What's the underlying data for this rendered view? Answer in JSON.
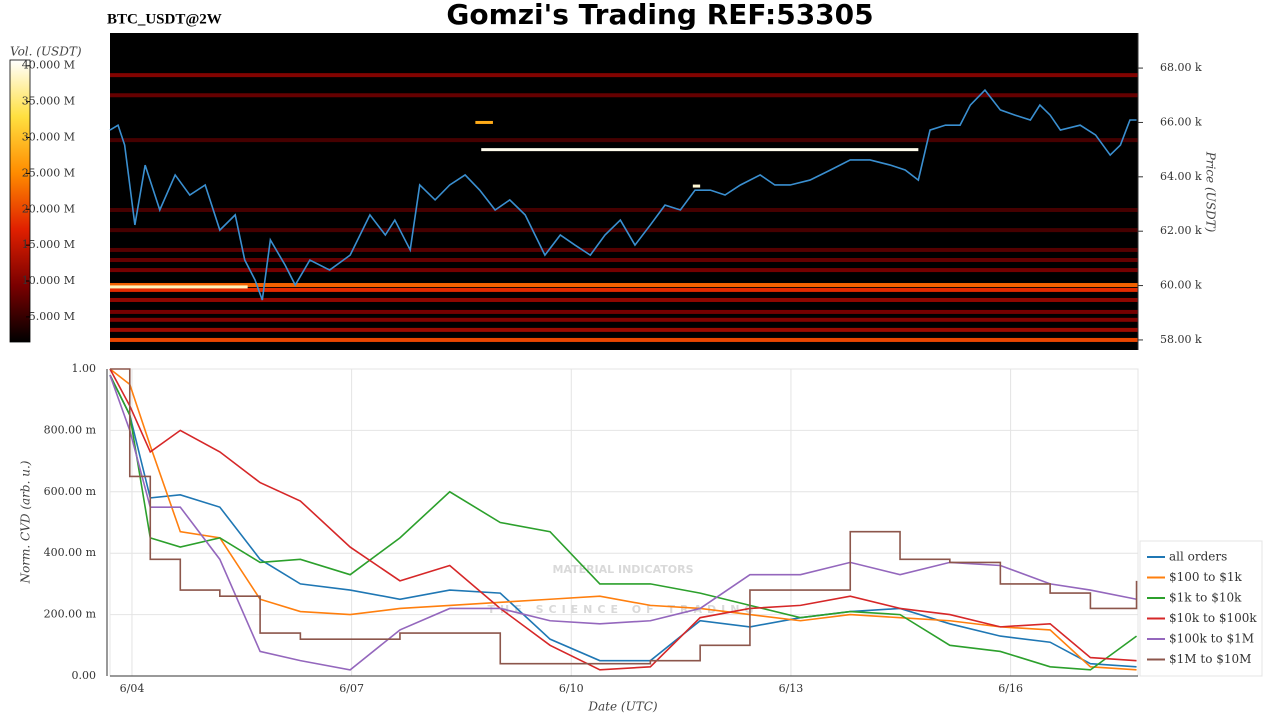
{
  "chart_data": [
    {
      "type": "heatmap",
      "title": "Gomzi's Trading REF:53305",
      "subtitle": "BTC_USDT@2W",
      "ylabel": "Price (USDT)",
      "xlim": [
        3.7,
        17.74
      ],
      "ylim": [
        57630,
        69290
      ],
      "yticks": [
        {
          "value": 58000,
          "label": "58.00 k"
        },
        {
          "value": 60000,
          "label": "60.00 k"
        },
        {
          "value": 62000,
          "label": "62.00 k"
        },
        {
          "value": 64000,
          "label": "64.00 k"
        },
        {
          "value": 66000,
          "label": "66.00 k"
        },
        {
          "value": 68000,
          "label": "68.00 k"
        }
      ],
      "colormap": [
        "#000000",
        "#7a0000",
        "#e02000",
        "#ff8c00",
        "#ffe040",
        "#ffffff"
      ],
      "colorbar": {
        "label": "Vol. (USDT)",
        "clim": [
          1500000,
          40800000
        ],
        "ticks": [
          {
            "value": 5000000,
            "label": "5.000 M"
          },
          {
            "value": 10000000,
            "label": "10.000 M"
          },
          {
            "value": 15000000,
            "label": "15.000 M"
          },
          {
            "value": 20000000,
            "label": "20.000 M"
          },
          {
            "value": 25000000,
            "label": "25.000 M"
          },
          {
            "value": 30000000,
            "label": "30.000 M"
          },
          {
            "value": 35000000,
            "label": "35.000 M"
          },
          {
            "value": 40000000,
            "label": "40.000 M"
          }
        ]
      },
      "heatmap": {
        "rows": [
          {
            "price": 58000,
            "volume": 20000000
          },
          {
            "price": 58370,
            "volume": 12000000
          },
          {
            "price": 58740,
            "volume": 10000000
          },
          {
            "price": 59030,
            "volume": 9000000
          },
          {
            "price": 59470,
            "volume": 11000000
          },
          {
            "price": 59840,
            "volume": 18000000
          },
          {
            "price": 60020,
            "volume": 22000000
          },
          {
            "price": 60570,
            "volume": 9000000
          },
          {
            "price": 60940,
            "volume": 8000000
          },
          {
            "price": 61310,
            "volume": 7000000
          },
          {
            "price": 62040,
            "volume": 6000000
          },
          {
            "price": 62780,
            "volume": 6000000
          },
          {
            "price": 65350,
            "volume": 6000000
          },
          {
            "price": 67000,
            "volume": 8000000
          },
          {
            "price": 67740,
            "volume": 10000000
          }
        ],
        "segments": [
          {
            "price": 65000,
            "x0": 8.77,
            "x1": 14.74,
            "volume": 40000000
          },
          {
            "price": 59950,
            "x0": 3.7,
            "x1": 5.58,
            "volume": 38000000
          },
          {
            "price": 66000,
            "x0": 8.69,
            "x1": 8.93,
            "volume": 28000000
          },
          {
            "price": 63660,
            "x0": 11.66,
            "x1": 11.76,
            "volume": 39000000
          }
        ]
      },
      "series": [
        {
          "color": "#3a8fd0",
          "x": [
            3.7,
            3.81,
            3.9,
            4.04,
            4.18,
            4.38,
            4.59,
            4.79,
            5.0,
            5.2,
            5.41,
            5.54,
            5.68,
            5.78,
            5.89,
            6.09,
            6.23,
            6.43,
            6.7,
            6.98,
            7.25,
            7.46,
            7.59,
            7.8,
            7.93,
            8.14,
            8.34,
            8.55,
            8.75,
            8.96,
            9.16,
            9.37,
            9.64,
            9.85,
            10.05,
            10.26,
            10.46,
            10.67,
            10.87,
            11.08,
            11.28,
            11.49,
            11.69,
            11.9,
            12.1,
            12.31,
            12.58,
            12.78,
            12.99,
            13.26,
            13.54,
            13.81,
            14.08,
            14.36,
            14.56,
            14.74,
            14.9,
            15.11,
            15.31,
            15.45,
            15.65,
            15.86,
            16.06,
            16.27,
            16.4,
            16.54,
            16.68,
            16.95,
            17.16,
            17.36,
            17.5,
            17.63,
            17.72
          ],
          "values": [
            65720,
            65900,
            65170,
            62230,
            64430,
            62780,
            64070,
            63330,
            63700,
            62040,
            62600,
            60940,
            60210,
            59470,
            61680,
            60760,
            60020,
            60940,
            60570,
            61120,
            62600,
            61860,
            62410,
            61310,
            63700,
            63150,
            63700,
            64070,
            63510,
            62780,
            63150,
            62600,
            61120,
            61860,
            61490,
            61120,
            61860,
            62410,
            61490,
            62230,
            62960,
            62780,
            63510,
            63510,
            63330,
            63700,
            64070,
            63700,
            63700,
            63880,
            64250,
            64620,
            64620,
            64430,
            64250,
            63880,
            65720,
            65900,
            65900,
            66640,
            67190,
            66460,
            66270,
            66090,
            66640,
            66270,
            65720,
            65900,
            65540,
            64800,
            65170,
            66090,
            66090
          ]
        }
      ]
    },
    {
      "type": "line",
      "xlabel": "Date (UTC)",
      "ylabel": "Norm. CVD (arb. u.)",
      "xlim": [
        3.7,
        17.74
      ],
      "xticks": [
        {
          "value": 4,
          "label": "6/04"
        },
        {
          "value": 7,
          "label": "6/07"
        },
        {
          "value": 10,
          "label": "6/10"
        },
        {
          "value": 13,
          "label": "6/13"
        },
        {
          "value": 16,
          "label": "6/16"
        }
      ],
      "ylim": [
        0,
        1
      ],
      "yticks": [
        {
          "value": 0,
          "label": "0.00"
        },
        {
          "value": 0.2,
          "label": "200.00 m"
        },
        {
          "value": 0.4,
          "label": "400.00 m"
        },
        {
          "value": 0.6,
          "label": "600.00 m"
        },
        {
          "value": 0.8,
          "label": "800.00 m"
        },
        {
          "value": 1,
          "label": "1.00"
        }
      ],
      "grid": true,
      "legend": "lower right",
      "annotations": [
        "MATERIAL INDICATORS",
        "THE SCIENCE OF TRADING"
      ],
      "x": [
        3.7,
        3.97,
        4.25,
        4.66,
        5.2,
        5.75,
        6.3,
        6.98,
        7.66,
        8.34,
        9.03,
        9.71,
        10.39,
        11.08,
        11.76,
        12.44,
        13.13,
        13.81,
        14.49,
        15.17,
        15.86,
        16.54,
        17.09,
        17.72
      ],
      "series": [
        {
          "name": "all orders",
          "color": "#1f77b4",
          "values": [
            0.98,
            0.85,
            0.58,
            0.59,
            0.55,
            0.38,
            0.3,
            0.28,
            0.25,
            0.28,
            0.27,
            0.12,
            0.05,
            0.05,
            0.18,
            0.16,
            0.19,
            0.21,
            0.22,
            0.17,
            0.13,
            0.11,
            0.04,
            0.03
          ]
        },
        {
          "name": "$100 to $1k",
          "color": "#ff7f0e",
          "values": [
            1.0,
            0.95,
            0.75,
            0.47,
            0.45,
            0.25,
            0.21,
            0.2,
            0.22,
            0.23,
            0.24,
            0.25,
            0.26,
            0.23,
            0.22,
            0.2,
            0.18,
            0.2,
            0.19,
            0.18,
            0.16,
            0.15,
            0.03,
            0.02
          ]
        },
        {
          "name": "$1k to $10k",
          "color": "#2ca02c",
          "values": [
            0.98,
            0.85,
            0.45,
            0.42,
            0.45,
            0.37,
            0.38,
            0.33,
            0.45,
            0.6,
            0.5,
            0.47,
            0.3,
            0.3,
            0.27,
            0.23,
            0.19,
            0.21,
            0.2,
            0.1,
            0.08,
            0.03,
            0.02,
            0.13
          ]
        },
        {
          "name": "$10k to $100k",
          "color": "#d62728",
          "values": [
            1.0,
            0.88,
            0.73,
            0.8,
            0.73,
            0.63,
            0.57,
            0.42,
            0.31,
            0.36,
            0.22,
            0.1,
            0.02,
            0.03,
            0.19,
            0.22,
            0.23,
            0.26,
            0.22,
            0.2,
            0.16,
            0.17,
            0.06,
            0.05
          ]
        },
        {
          "name": "$100k to $1M",
          "color": "#9467bd",
          "values": [
            0.98,
            0.8,
            0.55,
            0.55,
            0.38,
            0.08,
            0.05,
            0.02,
            0.15,
            0.22,
            0.22,
            0.18,
            0.17,
            0.18,
            0.22,
            0.33,
            0.33,
            0.37,
            0.33,
            0.37,
            0.36,
            0.3,
            0.28,
            0.25
          ]
        },
        {
          "name": "$1M to $10M",
          "color": "#8c564b",
          "drawstyle": "steps-post",
          "values": [
            1.0,
            0.65,
            0.38,
            0.28,
            0.26,
            0.14,
            0.12,
            0.12,
            0.14,
            0.14,
            0.04,
            0.04,
            0.04,
            0.05,
            0.1,
            0.28,
            0.28,
            0.47,
            0.38,
            0.37,
            0.3,
            0.27,
            0.22,
            0.31
          ]
        }
      ]
    }
  ]
}
